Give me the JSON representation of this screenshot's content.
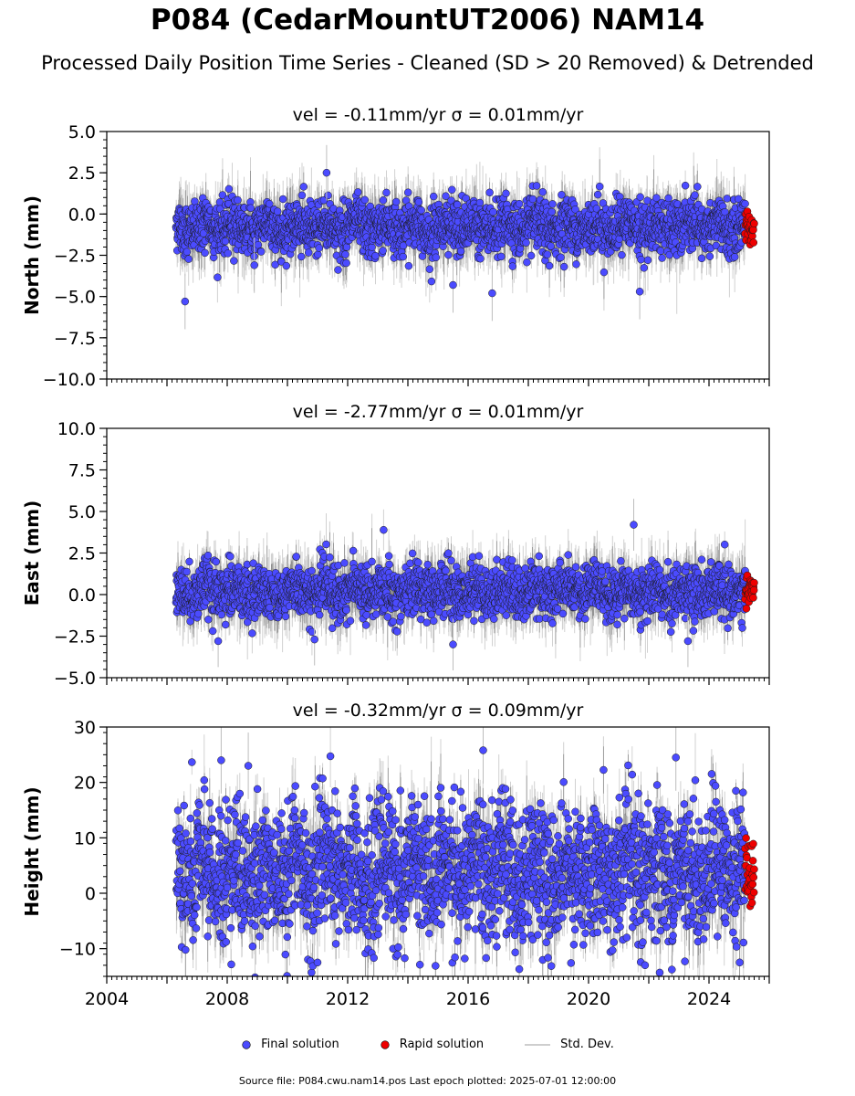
{
  "figure": {
    "title": "P084 (CedarMountUT2006) NAM14",
    "subtitle": "Processed Daily Position Time Series - Cleaned (SD > 20 Removed) & Detrended",
    "footer": "Source file: P084.cwu.nam14.pos  Last epoch plotted: 2025-07-01 12:00:00"
  },
  "legend": {
    "final": "Final solution",
    "rapid": "Rapid solution",
    "std": "Std. Dev.",
    "final_color": "#4b4bff",
    "rapid_color": "#ee0000",
    "std_color": "#bdbdbd"
  },
  "chart_data": [
    {
      "type": "scatter",
      "title": "vel = -0.11mm/yr   σ = 0.01mm/yr",
      "ylabel": "North (mm)",
      "xlim": [
        2004.0,
        2026.0
      ],
      "ylim": [
        -10.0,
        5.0
      ],
      "yticks": [
        5.0,
        2.5,
        0.0,
        -2.5,
        -5.0,
        -7.5,
        -10.0
      ],
      "yticklabels": [
        "5.0",
        "2.5",
        "0.0",
        "−2.5",
        "−5.0",
        "−7.5",
        "−10.0"
      ],
      "data_start": 2006.3,
      "data_end": 2025.2,
      "rapid_start": 2025.2,
      "rapid_end": 2025.5,
      "mean": -0.8,
      "scatter_sd": 0.8,
      "error_sd": 1.4,
      "outliers": [
        [
          2006.6,
          -5.3
        ],
        [
          2021.7,
          -4.7
        ],
        [
          2016.8,
          -4.8
        ],
        [
          2011.3,
          2.5
        ],
        [
          2015.5,
          -4.3
        ],
        [
          2008.9,
          -3.1
        ]
      ]
    },
    {
      "type": "scatter",
      "title": "vel = -2.77mm/yr   σ = 0.01mm/yr",
      "ylabel": "East (mm)",
      "xlim": [
        2004.0,
        2026.0
      ],
      "ylim": [
        -5.0,
        10.0
      ],
      "yticks": [
        10.0,
        7.5,
        5.0,
        2.5,
        0.0,
        -2.5,
        -5.0
      ],
      "yticklabels": [
        "10.0",
        "7.5",
        "5.0",
        "2.5",
        "0.0",
        "−2.5",
        "−5.0"
      ],
      "data_start": 2006.3,
      "data_end": 2025.2,
      "rapid_start": 2025.2,
      "rapid_end": 2025.5,
      "mean": 0.2,
      "scatter_sd": 0.8,
      "error_sd": 1.3,
      "outliers": [
        [
          2021.5,
          4.2
        ],
        [
          2015.5,
          -3.0
        ],
        [
          2007.7,
          -2.8
        ],
        [
          2023.3,
          -2.8
        ],
        [
          2010.9,
          -2.7
        ]
      ]
    },
    {
      "type": "scatter",
      "title": "vel = -0.32mm/yr   σ = 0.09mm/yr",
      "ylabel": "Height (mm)",
      "xlim": [
        2004.0,
        2026.0
      ],
      "ylim": [
        -15.0,
        30.0
      ],
      "yticks": [
        30,
        20,
        10,
        0,
        -10
      ],
      "yticklabels": [
        "30",
        "20",
        "10",
        "0",
        "−10"
      ],
      "xticks": [
        2004,
        2008,
        2012,
        2016,
        2020,
        2024
      ],
      "xticklabels": [
        "2004",
        "2008",
        "2012",
        "2016",
        "2020",
        "2024"
      ],
      "data_start": 2006.3,
      "data_end": 2025.2,
      "rapid_start": 2025.2,
      "rapid_end": 2025.5,
      "mean": 4.0,
      "scatter_sd": 6.0,
      "error_sd": 5.0,
      "outliers": [
        [
          2016.5,
          25.8
        ],
        [
          2022.9,
          24.5
        ],
        [
          2007.8,
          24.0
        ],
        [
          2008.7,
          23.0
        ],
        [
          2017.7,
          -13.7
        ],
        [
          2011.0,
          -12.5
        ],
        [
          2023.2,
          -12.3
        ]
      ]
    }
  ]
}
